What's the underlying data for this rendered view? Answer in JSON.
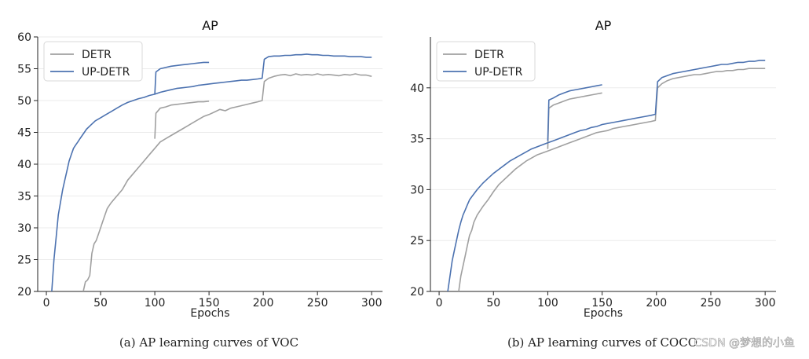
{
  "chart_data": [
    {
      "type": "line",
      "title": "AP",
      "xlabel": "Epochs",
      "ylabel": "",
      "xlim": [
        -8,
        310
      ],
      "ylim": [
        20,
        60
      ],
      "xticks": [
        0,
        50,
        100,
        150,
        200,
        250,
        300
      ],
      "yticks": [
        20,
        25,
        30,
        35,
        40,
        45,
        50,
        55,
        60
      ],
      "grid": "horizontal",
      "legend_position": "top-left",
      "caption": "(a) AP learning curves of VOC",
      "series": [
        {
          "name": "DETR",
          "color": "#a0a0a0",
          "segments": [
            {
              "x": [
                34,
                36,
                38,
                40,
                42,
                44,
                46,
                48,
                50,
                52,
                54,
                56,
                58,
                60,
                65,
                70,
                75,
                80,
                85,
                90,
                95,
                100,
                105,
                110,
                115,
                120,
                125,
                130,
                135,
                140,
                145,
                150,
                155,
                160,
                165,
                170,
                175,
                180,
                185,
                190,
                195,
                199,
                200,
                201,
                205,
                210,
                215,
                220,
                225,
                230,
                235,
                240,
                245,
                250,
                255,
                260,
                265,
                270,
                275,
                280,
                285,
                290,
                295,
                300
              ],
              "y": [
                20,
                21.5,
                21.8,
                22.5,
                26,
                27.5,
                28,
                29,
                30,
                31,
                32,
                33,
                33.5,
                34,
                35,
                36,
                37.5,
                38.5,
                39.5,
                40.5,
                41.5,
                42.5,
                43.5,
                44,
                44.5,
                45,
                45.5,
                46,
                46.5,
                47,
                47.5,
                47.8,
                48.2,
                48.6,
                48.4,
                48.8,
                49,
                49.2,
                49.4,
                49.6,
                49.8,
                50,
                51.5,
                53,
                53.5,
                53.8,
                54,
                54.1,
                53.9,
                54.2,
                54,
                54.1,
                54,
                54.2,
                54,
                54.1,
                54,
                53.9,
                54.1,
                54,
                54.2,
                54,
                54,
                53.8
              ]
            },
            {
              "x": [
                100,
                101,
                105,
                110,
                115,
                120,
                125,
                130,
                135,
                140,
                145,
                150
              ],
              "y": [
                44,
                48,
                48.8,
                49,
                49.3,
                49.4,
                49.5,
                49.6,
                49.7,
                49.8,
                49.8,
                49.9
              ]
            }
          ]
        },
        {
          "name": "UP-DETR",
          "color": "#4c72b0",
          "segments": [
            {
              "x": [
                5,
                7,
                9,
                11,
                13,
                15,
                17,
                19,
                21,
                23,
                25,
                27,
                29,
                31,
                33,
                35,
                37,
                40,
                45,
                50,
                55,
                60,
                65,
                70,
                75,
                80,
                85,
                90,
                95,
                100,
                105,
                110,
                115,
                120,
                125,
                130,
                135,
                140,
                145,
                150,
                155,
                160,
                165,
                170,
                175,
                180,
                185,
                190,
                195,
                199,
                200,
                201,
                205,
                210,
                215,
                220,
                225,
                230,
                235,
                240,
                245,
                250,
                255,
                260,
                265,
                270,
                275,
                280,
                285,
                290,
                295,
                300
              ],
              "y": [
                20,
                25,
                28.5,
                32,
                34,
                36,
                37.5,
                39,
                40.5,
                41.5,
                42.5,
                43,
                43.5,
                44,
                44.5,
                45,
                45.5,
                46,
                46.8,
                47.3,
                47.8,
                48.3,
                48.8,
                49.3,
                49.7,
                50,
                50.3,
                50.5,
                50.8,
                51,
                51.3,
                51.5,
                51.7,
                51.9,
                52,
                52.1,
                52.2,
                52.4,
                52.5,
                52.6,
                52.7,
                52.8,
                52.9,
                53,
                53.1,
                53.2,
                53.2,
                53.3,
                53.4,
                53.5,
                55,
                56.5,
                56.9,
                57,
                57,
                57.1,
                57.1,
                57.2,
                57.2,
                57.3,
                57.2,
                57.2,
                57.1,
                57.1,
                57,
                57,
                57,
                56.9,
                56.9,
                56.9,
                56.8,
                56.8
              ]
            },
            {
              "x": [
                100,
                101,
                105,
                110,
                115,
                120,
                125,
                130,
                135,
                140,
                145,
                150
              ],
              "y": [
                51,
                54.5,
                55,
                55.2,
                55.4,
                55.5,
                55.6,
                55.7,
                55.8,
                55.9,
                56,
                56
              ]
            }
          ]
        }
      ]
    },
    {
      "type": "line",
      "title": "AP",
      "xlabel": "Epochs",
      "ylabel": "",
      "xlim": [
        -8,
        310
      ],
      "ylim": [
        20,
        45
      ],
      "xticks": [
        0,
        50,
        100,
        150,
        200,
        250,
        300
      ],
      "yticks": [
        20,
        25,
        30,
        35,
        40
      ],
      "grid": "horizontal",
      "legend_position": "top-left",
      "caption": "(b) AP learning curves of COCO",
      "series": [
        {
          "name": "DETR",
          "color": "#a0a0a0",
          "segments": [
            {
              "x": [
                18,
                20,
                22,
                24,
                26,
                28,
                30,
                32,
                35,
                40,
                45,
                50,
                55,
                60,
                65,
                70,
                75,
                80,
                85,
                90,
                95,
                100,
                105,
                110,
                115,
                120,
                125,
                130,
                135,
                140,
                145,
                150,
                155,
                160,
                165,
                170,
                175,
                180,
                185,
                190,
                195,
                199,
                200,
                201,
                205,
                210,
                215,
                220,
                225,
                230,
                235,
                240,
                245,
                250,
                255,
                260,
                265,
                270,
                275,
                280,
                285,
                290,
                295,
                300
              ],
              "y": [
                20,
                21.5,
                22.5,
                23.5,
                24.5,
                25.5,
                26,
                26.8,
                27.5,
                28.3,
                29,
                29.8,
                30.5,
                31,
                31.5,
                32,
                32.4,
                32.8,
                33.1,
                33.4,
                33.6,
                33.8,
                34,
                34.2,
                34.4,
                34.6,
                34.8,
                35,
                35.2,
                35.4,
                35.6,
                35.7,
                35.8,
                36,
                36.1,
                36.2,
                36.3,
                36.4,
                36.5,
                36.6,
                36.7,
                36.8,
                38.5,
                40,
                40.4,
                40.7,
                40.9,
                41,
                41.1,
                41.2,
                41.3,
                41.3,
                41.4,
                41.5,
                41.6,
                41.6,
                41.7,
                41.7,
                41.8,
                41.8,
                41.9,
                41.9,
                41.9,
                41.9
              ]
            },
            {
              "x": [
                100,
                101,
                105,
                110,
                115,
                120,
                125,
                130,
                135,
                140,
                145,
                150
              ],
              "y": [
                34,
                38,
                38.3,
                38.5,
                38.7,
                38.9,
                39,
                39.1,
                39.2,
                39.3,
                39.4,
                39.5
              ]
            }
          ]
        },
        {
          "name": "UP-DETR",
          "color": "#4c72b0",
          "segments": [
            {
              "x": [
                8,
                10,
                12,
                14,
                16,
                18,
                20,
                22,
                24,
                26,
                28,
                30,
                35,
                40,
                45,
                50,
                55,
                60,
                65,
                70,
                75,
                80,
                85,
                90,
                95,
                100,
                105,
                110,
                115,
                120,
                125,
                130,
                135,
                140,
                145,
                150,
                155,
                160,
                165,
                170,
                175,
                180,
                185,
                190,
                195,
                199,
                200,
                201,
                205,
                210,
                215,
                220,
                225,
                230,
                235,
                240,
                245,
                250,
                255,
                260,
                265,
                270,
                275,
                280,
                285,
                290,
                295,
                300
              ],
              "y": [
                20,
                21.5,
                23,
                24,
                25,
                26,
                26.8,
                27.5,
                28,
                28.5,
                29,
                29.3,
                30,
                30.6,
                31.1,
                31.6,
                32,
                32.4,
                32.8,
                33.1,
                33.4,
                33.7,
                34,
                34.2,
                34.4,
                34.6,
                34.8,
                35,
                35.2,
                35.4,
                35.6,
                35.8,
                35.9,
                36.1,
                36.2,
                36.4,
                36.5,
                36.6,
                36.7,
                36.8,
                36.9,
                37,
                37.1,
                37.2,
                37.3,
                37.4,
                39,
                40.6,
                41,
                41.2,
                41.4,
                41.5,
                41.6,
                41.7,
                41.8,
                41.9,
                42,
                42.1,
                42.2,
                42.3,
                42.3,
                42.4,
                42.5,
                42.5,
                42.6,
                42.6,
                42.7,
                42.7
              ]
            },
            {
              "x": [
                100,
                101,
                105,
                110,
                115,
                120,
                125,
                130,
                135,
                140,
                145,
                150
              ],
              "y": [
                34.8,
                38.8,
                39,
                39.3,
                39.5,
                39.7,
                39.8,
                39.9,
                40,
                40.1,
                40.2,
                40.3
              ]
            }
          ]
        }
      ]
    }
  ],
  "watermark": "CSDN @梦想的小鱼"
}
